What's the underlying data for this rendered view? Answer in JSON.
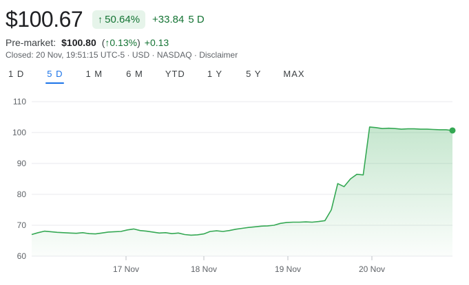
{
  "quote": {
    "price": "$100.67",
    "change_pct": "50.64%",
    "change_abs": "+33.84",
    "period": "5 D"
  },
  "premarket": {
    "label": "Pre-market:",
    "price": "$100.80",
    "pct": "0.13%",
    "abs": "+0.13"
  },
  "closed_info": "Closed: 20 Nov, 19:51:15 UTC-5 · USD · NASDAQ · Disclaimer",
  "tabs": [
    {
      "label": "1 D",
      "active": false
    },
    {
      "label": "5 D",
      "active": true
    },
    {
      "label": "1 M",
      "active": false
    },
    {
      "label": "6 M",
      "active": false
    },
    {
      "label": "YTD",
      "active": false
    },
    {
      "label": "1 Y",
      "active": false
    },
    {
      "label": "5 Y",
      "active": false
    },
    {
      "label": "MAX",
      "active": false
    }
  ],
  "colors": {
    "up": "#137333",
    "line": "#34a853",
    "badge_bg": "#e6f4ea",
    "active_tab": "#1a73e8",
    "grid": "#e8eaed"
  },
  "chart_data": {
    "type": "area",
    "ylim": [
      60,
      110
    ],
    "yticks": [
      60,
      70,
      80,
      90,
      100,
      110
    ],
    "xticks": [
      "17 Nov",
      "18 Nov",
      "19 Nov",
      "20 Nov"
    ],
    "grid": true,
    "series": [
      {
        "values": [
          67,
          67.6,
          68.1,
          67.9,
          67.7,
          67.6,
          67.5,
          67.4,
          67.6,
          67.3,
          67.2,
          67.5,
          67.8,
          67.9,
          68.0,
          68.5,
          68.8,
          68.3,
          68.1,
          67.8,
          67.5,
          67.6,
          67.3,
          67.5,
          67.0,
          66.8,
          66.9,
          67.2,
          68.0,
          68.2,
          68.0,
          68.3,
          68.7,
          69.0,
          69.3,
          69.5,
          69.7,
          69.8,
          70.0,
          70.6,
          70.9,
          71.0,
          71.0,
          71.1,
          71.0,
          71.2,
          71.5,
          75.0,
          83.5,
          82.5,
          85.0,
          86.5,
          86.3,
          101.8,
          101.6,
          101.3,
          101.4,
          101.3,
          101.1,
          101.2,
          101.2,
          101.1,
          101.1,
          101.0,
          100.9,
          100.9,
          100.67
        ]
      }
    ]
  }
}
